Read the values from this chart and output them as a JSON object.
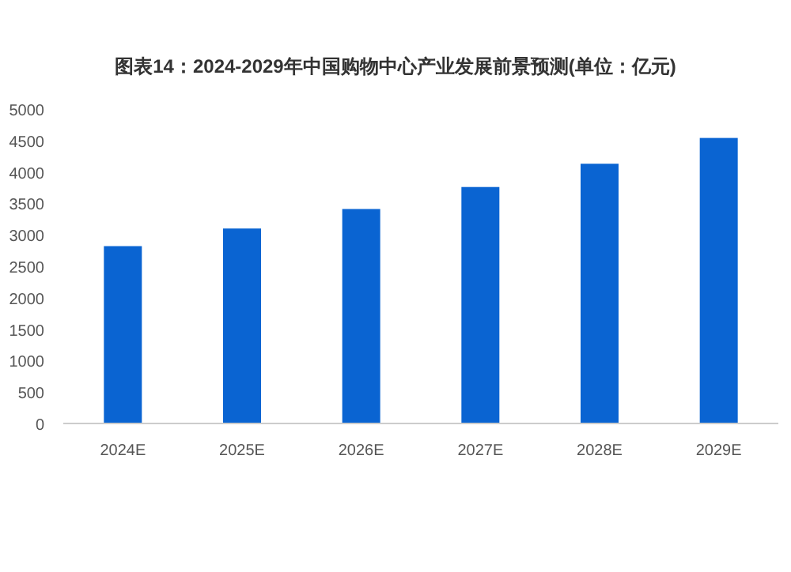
{
  "chart_data": {
    "type": "bar",
    "title": "图表14：2024-2029年中国购物中心产业发展前景预测(单位：亿元)",
    "categories": [
      "2024E",
      "2025E",
      "2026E",
      "2027E",
      "2028E",
      "2029E"
    ],
    "values": [
      2820,
      3100,
      3410,
      3760,
      4130,
      4540
    ],
    "color": "#0a64d2",
    "ylim": [
      0,
      5000
    ],
    "yticks": [
      0,
      500,
      1000,
      1500,
      2000,
      2500,
      3000,
      3500,
      4000,
      4500,
      5000
    ],
    "grid": false
  }
}
